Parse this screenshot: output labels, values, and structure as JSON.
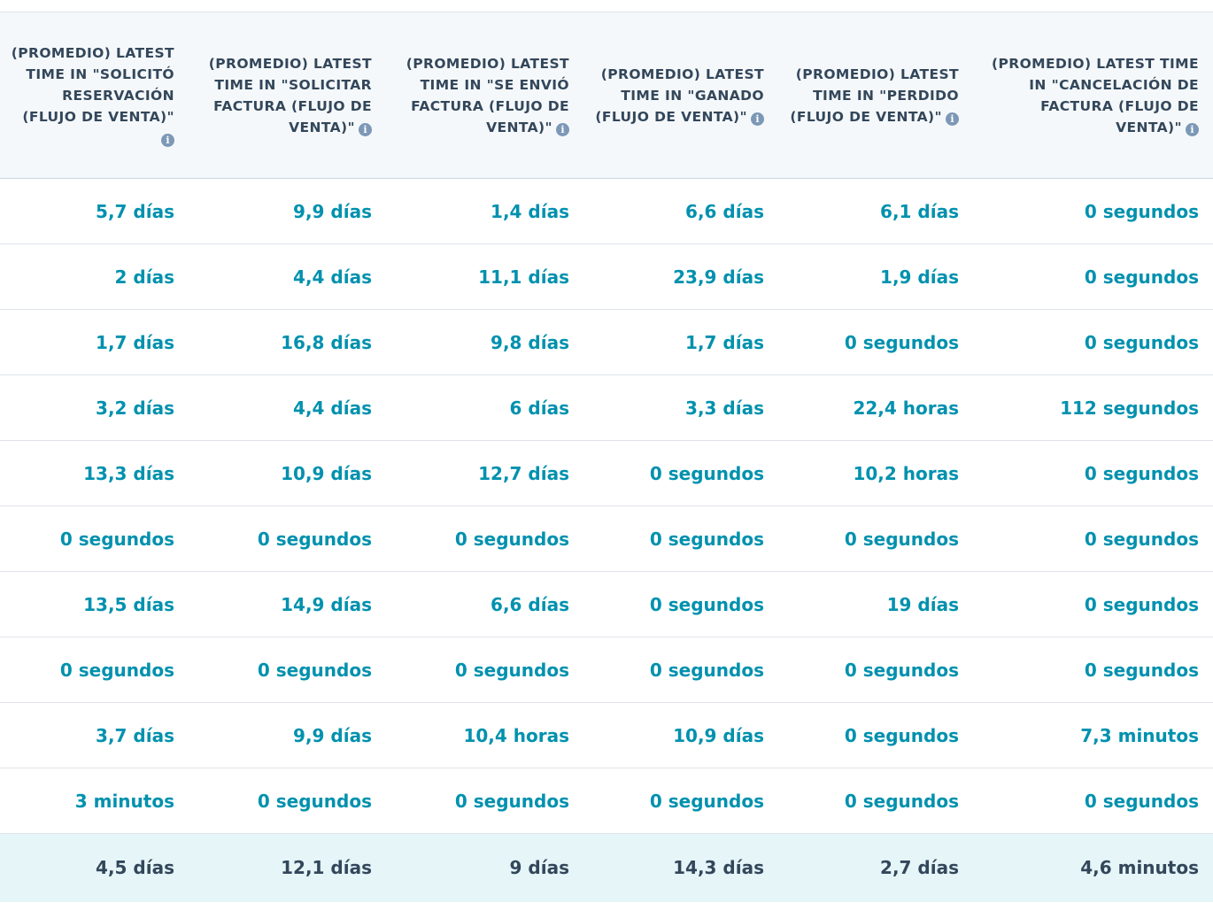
{
  "table": {
    "headers": [
      "(PROMEDIO) LATEST TIME IN \"SOLICITÓ RESERVACIÓN (FLUJO DE VENTA)\"",
      "(PROMEDIO) LATEST TIME IN \"SOLICITAR FACTURA (FLUJO DE VENTA)\"",
      "(PROMEDIO) LATEST TIME IN \"SE ENVIÓ FACTURA (FLUJO DE VENTA)\"",
      "(PROMEDIO) LATEST TIME IN \"GANADO (FLUJO DE VENTA)\"",
      "(PROMEDIO) LATEST TIME IN \"PERDIDO (FLUJO DE VENTA)\"",
      "(PROMEDIO) LATEST TIME IN \"CANCELACIÓN DE FACTURA (FLUJO DE VENTA)\""
    ],
    "rows": [
      [
        "5,7 días",
        "9,9 días",
        "1,4 días",
        "6,6 días",
        "6,1 días",
        "0 segundos"
      ],
      [
        "2 días",
        "4,4 días",
        "11,1 días",
        "23,9 días",
        "1,9 días",
        "0 segundos"
      ],
      [
        "1,7 días",
        "16,8 días",
        "9,8 días",
        "1,7 días",
        "0 segundos",
        "0 segundos"
      ],
      [
        "3,2 días",
        "4,4 días",
        "6 días",
        "3,3 días",
        "22,4 horas",
        "112 segundos"
      ],
      [
        "13,3 días",
        "10,9 días",
        "12,7 días",
        "0 segundos",
        "10,2 horas",
        "0 segundos"
      ],
      [
        "0 segundos",
        "0 segundos",
        "0 segundos",
        "0 segundos",
        "0 segundos",
        "0 segundos"
      ],
      [
        "13,5 días",
        "14,9 días",
        "6,6 días",
        "0 segundos",
        "19 días",
        "0 segundos"
      ],
      [
        "0 segundos",
        "0 segundos",
        "0 segundos",
        "0 segundos",
        "0 segundos",
        "0 segundos"
      ],
      [
        "3,7 días",
        "9,9 días",
        "10,4 horas",
        "10,9 días",
        "0 segundos",
        "7,3 minutos"
      ],
      [
        "3 minutos",
        "0 segundos",
        "0 segundos",
        "0 segundos",
        "0 segundos",
        "0 segundos"
      ]
    ],
    "totals": [
      "4,5 días",
      "12,1 días",
      "9 días",
      "14,3 días",
      "2,7 días",
      "4,6 minutos"
    ]
  },
  "icons": {
    "header_info": "info-icon",
    "info_glyph": "i"
  },
  "colors": {
    "header_bg": "#f5f8fa",
    "header_text": "#33475b",
    "value_text": "#0091ae",
    "total_bg": "#e5f5f8",
    "info_icon": "#7c98b6"
  }
}
